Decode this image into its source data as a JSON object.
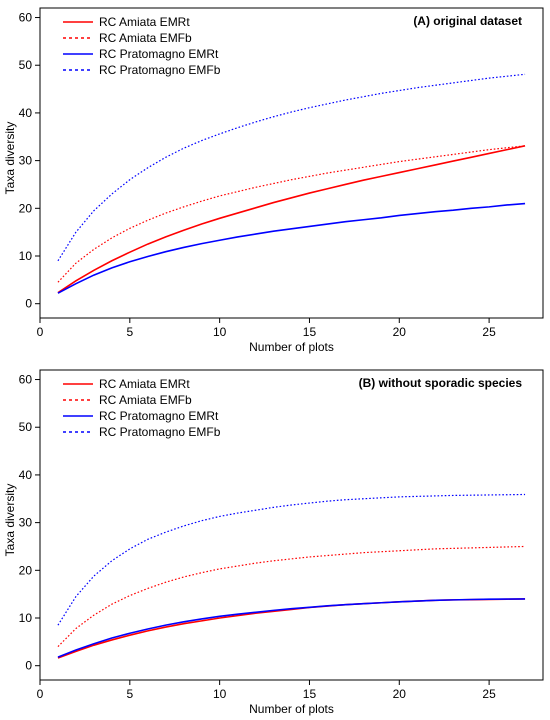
{
  "chart_data": [
    {
      "type": "line",
      "title": "(A) original dataset",
      "xlabel": "Number of plots",
      "ylabel": "Taxa diversity",
      "xlim": [
        0,
        28
      ],
      "ylim": [
        -3,
        62
      ],
      "xticks": [
        0,
        5,
        10,
        15,
        20,
        25
      ],
      "yticks": [
        0,
        10,
        20,
        30,
        40,
        50,
        60
      ],
      "grid": false,
      "legend_position": "top-left",
      "x": [
        1,
        2,
        3,
        4,
        5,
        6,
        7,
        8,
        9,
        10,
        11,
        12,
        13,
        14,
        15,
        16,
        17,
        18,
        19,
        20,
        21,
        22,
        23,
        24,
        25,
        26,
        27
      ],
      "series": [
        {
          "name": "RC Amiata EMRt",
          "color": "#ff0000",
          "dash": "solid",
          "values": [
            2.3,
            4.8,
            7.0,
            9.0,
            10.8,
            12.5,
            14.0,
            15.4,
            16.7,
            17.9,
            19.0,
            20.1,
            21.2,
            22.2,
            23.2,
            24.1,
            25.0,
            25.9,
            26.7,
            27.5,
            28.3,
            29.1,
            29.9,
            30.7,
            31.5,
            32.3,
            33.1
          ]
        },
        {
          "name": "RC Amiata EMFb",
          "color": "#ff0000",
          "dash": "dotted",
          "values": [
            4.5,
            8.5,
            11.4,
            13.8,
            15.8,
            17.5,
            19.0,
            20.3,
            21.5,
            22.6,
            23.5,
            24.4,
            25.2,
            26.0,
            26.7,
            27.4,
            28.0,
            28.6,
            29.2,
            29.8,
            30.3,
            30.8,
            31.3,
            31.8,
            32.3,
            32.7,
            33.1
          ]
        },
        {
          "name": "RC Pratomagno EMRt",
          "color": "#0000ff",
          "dash": "solid",
          "values": [
            2.2,
            4.2,
            6.0,
            7.5,
            8.8,
            9.9,
            10.9,
            11.8,
            12.6,
            13.3,
            14.0,
            14.6,
            15.2,
            15.7,
            16.2,
            16.7,
            17.2,
            17.6,
            18.0,
            18.5,
            18.9,
            19.3,
            19.6,
            20.0,
            20.3,
            20.7,
            21.0
          ]
        },
        {
          "name": "RC Pratomagno EMFb",
          "color": "#0000ff",
          "dash": "dotted",
          "values": [
            9.0,
            15.0,
            19.5,
            23.0,
            26.0,
            28.5,
            30.7,
            32.6,
            34.2,
            35.6,
            36.9,
            38.1,
            39.2,
            40.2,
            41.1,
            41.9,
            42.7,
            43.4,
            44.1,
            44.7,
            45.3,
            45.8,
            46.3,
            46.8,
            47.3,
            47.7,
            48.1
          ]
        }
      ]
    },
    {
      "type": "line",
      "title": "(B) without sporadic species",
      "xlabel": "Number of plots",
      "ylabel": "Taxa diversity",
      "xlim": [
        0,
        28
      ],
      "ylim": [
        -3,
        62
      ],
      "xticks": [
        0,
        5,
        10,
        15,
        20,
        25
      ],
      "yticks": [
        0,
        10,
        20,
        30,
        40,
        50,
        60
      ],
      "grid": false,
      "legend_position": "top-left",
      "x": [
        1,
        2,
        3,
        4,
        5,
        6,
        7,
        8,
        9,
        10,
        11,
        12,
        13,
        14,
        15,
        16,
        17,
        18,
        19,
        20,
        21,
        22,
        23,
        24,
        25,
        26,
        27
      ],
      "series": [
        {
          "name": "RC Amiata EMRt",
          "color": "#ff0000",
          "dash": "solid",
          "values": [
            1.6,
            3.0,
            4.3,
            5.4,
            6.4,
            7.3,
            8.1,
            8.8,
            9.4,
            10.0,
            10.5,
            11.0,
            11.4,
            11.8,
            12.2,
            12.5,
            12.8,
            13.0,
            13.2,
            13.4,
            13.55,
            13.7,
            13.8,
            13.85,
            13.9,
            13.95,
            14.0
          ]
        },
        {
          "name": "RC Amiata EMFb",
          "color": "#ff0000",
          "dash": "dotted",
          "values": [
            4.0,
            7.8,
            10.6,
            12.9,
            14.7,
            16.2,
            17.5,
            18.6,
            19.5,
            20.3,
            20.9,
            21.5,
            22.0,
            22.4,
            22.8,
            23.1,
            23.4,
            23.7,
            23.9,
            24.1,
            24.3,
            24.5,
            24.6,
            24.7,
            24.8,
            24.9,
            25.0
          ]
        },
        {
          "name": "RC Pratomagno EMRt",
          "color": "#0000ff",
          "dash": "solid",
          "values": [
            1.8,
            3.3,
            4.6,
            5.8,
            6.8,
            7.7,
            8.5,
            9.2,
            9.8,
            10.35,
            10.8,
            11.2,
            11.6,
            11.95,
            12.25,
            12.55,
            12.8,
            13.0,
            13.2,
            13.4,
            13.55,
            13.7,
            13.8,
            13.88,
            13.94,
            13.98,
            14.0
          ]
        },
        {
          "name": "RC Pratomagno EMFb",
          "color": "#0000ff",
          "dash": "dotted",
          "values": [
            8.5,
            14.5,
            18.8,
            22.0,
            24.5,
            26.5,
            28.0,
            29.3,
            30.4,
            31.3,
            32.0,
            32.6,
            33.2,
            33.7,
            34.1,
            34.5,
            34.8,
            35.0,
            35.2,
            35.4,
            35.5,
            35.6,
            35.7,
            35.75,
            35.8,
            35.85,
            35.9
          ]
        }
      ]
    }
  ]
}
